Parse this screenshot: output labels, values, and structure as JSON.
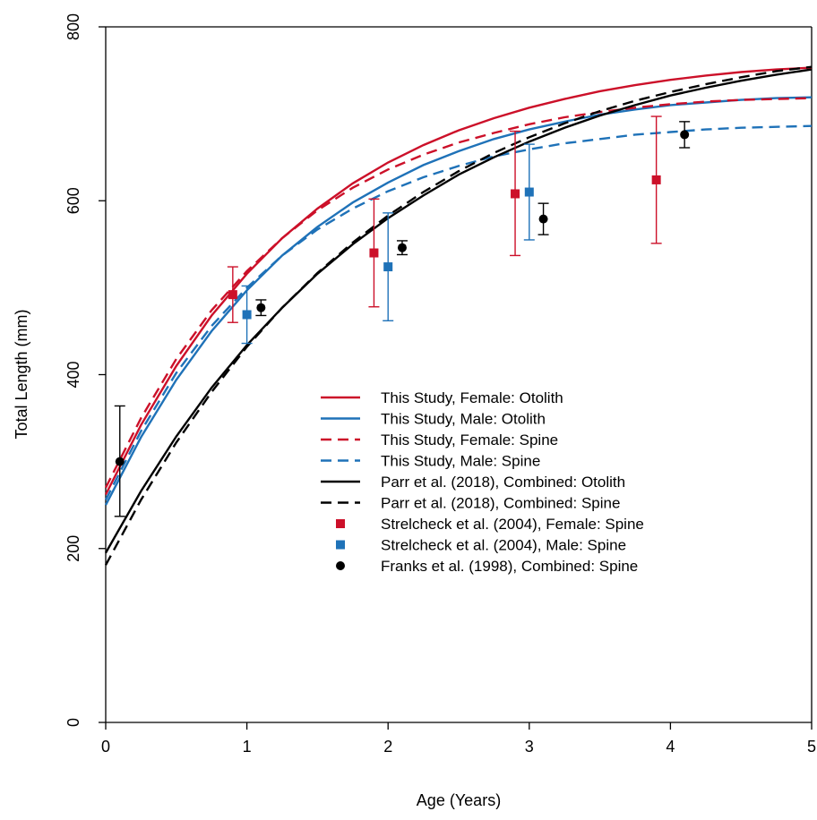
{
  "chart_data": {
    "type": "line",
    "title": "",
    "xlabel": "Age (Years)",
    "ylabel": "Total Length (mm)",
    "xlim": [
      0,
      5
    ],
    "ylim": [
      0,
      800
    ],
    "xticks": [
      0,
      1,
      2,
      3,
      4,
      5
    ],
    "yticks": [
      0,
      200,
      400,
      600,
      800
    ],
    "grid": false,
    "legend_position": "center-right",
    "lines": [
      {
        "name": "This Study, Female: Otolith",
        "color": "#cc1029",
        "dash": "solid",
        "x": [
          0,
          0.25,
          0.5,
          0.75,
          1,
          1.25,
          1.5,
          1.75,
          2,
          2.25,
          2.5,
          2.75,
          3,
          3.25,
          3.5,
          3.75,
          4,
          4.25,
          4.5,
          4.75,
          5
        ],
        "y": [
          262,
          342,
          410,
          468,
          516,
          557,
          591,
          620,
          644,
          664,
          681,
          695,
          707,
          717,
          726,
          733,
          739,
          744,
          748,
          751,
          753
        ]
      },
      {
        "name": "This Study, Male: Otolith",
        "color": "#1f72b8",
        "dash": "solid",
        "x": [
          0,
          0.25,
          0.5,
          0.75,
          1,
          1.25,
          1.5,
          1.75,
          2,
          2.25,
          2.5,
          2.75,
          3,
          3.25,
          3.5,
          3.75,
          4,
          4.25,
          4.5,
          4.75,
          5
        ],
        "y": [
          250,
          328,
          394,
          450,
          497,
          537,
          570,
          598,
          621,
          641,
          657,
          671,
          682,
          691,
          699,
          705,
          710,
          713,
          716,
          718,
          719
        ]
      },
      {
        "name": "This Study, Female: Spine",
        "color": "#cc1029",
        "dash": "dashed",
        "x": [
          0,
          0.25,
          0.5,
          0.75,
          1,
          1.25,
          1.5,
          1.75,
          2,
          2.25,
          2.5,
          2.75,
          3,
          3.25,
          3.5,
          3.75,
          4,
          4.25,
          4.5,
          4.75,
          5
        ],
        "y": [
          270,
          350,
          418,
          474,
          519,
          557,
          589,
          615,
          636,
          653,
          667,
          678,
          688,
          696,
          702,
          707,
          711,
          714,
          716,
          717,
          718
        ]
      },
      {
        "name": "This Study, Male: Spine",
        "color": "#1f72b8",
        "dash": "dashed",
        "x": [
          0,
          0.25,
          0.5,
          0.75,
          1,
          1.25,
          1.5,
          1.75,
          2,
          2.25,
          2.5,
          2.75,
          3,
          3.25,
          3.5,
          3.75,
          4,
          4.25,
          4.5,
          4.75,
          5
        ],
        "y": [
          256,
          335,
          402,
          456,
          500,
          537,
          567,
          591,
          611,
          627,
          640,
          651,
          659,
          666,
          671,
          676,
          679,
          682,
          684,
          685,
          686
        ]
      },
      {
        "name": "Parr et al. (2018), Combined: Otolith",
        "color": "#000000",
        "dash": "solid",
        "x": [
          0,
          0.25,
          0.5,
          0.75,
          1,
          1.25,
          1.5,
          1.75,
          2,
          2.25,
          2.5,
          2.75,
          3,
          3.25,
          3.5,
          3.75,
          4,
          4.25,
          4.5,
          4.75,
          5
        ],
        "y": [
          195,
          266,
          329,
          385,
          434,
          477,
          516,
          550,
          580,
          606,
          630,
          650,
          668,
          684,
          698,
          710,
          721,
          730,
          738,
          745,
          751
        ]
      },
      {
        "name": "Parr et al. (2018), Combined: Spine",
        "color": "#000000",
        "dash": "dashed",
        "x": [
          0,
          0.25,
          0.5,
          0.75,
          1,
          1.25,
          1.5,
          1.75,
          2,
          2.25,
          2.5,
          2.75,
          3,
          3.25,
          3.5,
          3.75,
          4,
          4.25,
          4.5,
          4.75,
          5
        ],
        "y": [
          181,
          256,
          322,
          380,
          432,
          477,
          517,
          552,
          583,
          610,
          634,
          655,
          673,
          689,
          703,
          715,
          725,
          734,
          742,
          749,
          754
        ]
      }
    ],
    "points": [
      {
        "name": "Strelcheck et al. (2004), Female: Spine",
        "color": "#cc1029",
        "marker": "square",
        "x": [
          0.9,
          1.9,
          2.9,
          3.9
        ],
        "y": [
          492,
          540,
          608,
          624
        ],
        "err_low": [
          460,
          478,
          537,
          551
        ],
        "err_high": [
          524,
          602,
          680,
          697
        ]
      },
      {
        "name": "Strelcheck et al. (2004), Male: Spine",
        "color": "#1f72b8",
        "marker": "square",
        "x": [
          1.0,
          2.0,
          3.0
        ],
        "y": [
          469,
          524,
          610
        ],
        "err_low": [
          436,
          462,
          555
        ],
        "err_high": [
          502,
          586,
          665
        ]
      },
      {
        "name": "Franks et al. (1998), Combined: Spine",
        "color": "#000000",
        "marker": "circle",
        "x": [
          0.1,
          1.1,
          2.1,
          3.1,
          4.1
        ],
        "y": [
          300,
          477,
          546,
          579,
          676
        ],
        "err_low": [
          237,
          468,
          538,
          561,
          661
        ],
        "err_high": [
          364,
          486,
          554,
          597,
          691
        ]
      }
    ]
  }
}
